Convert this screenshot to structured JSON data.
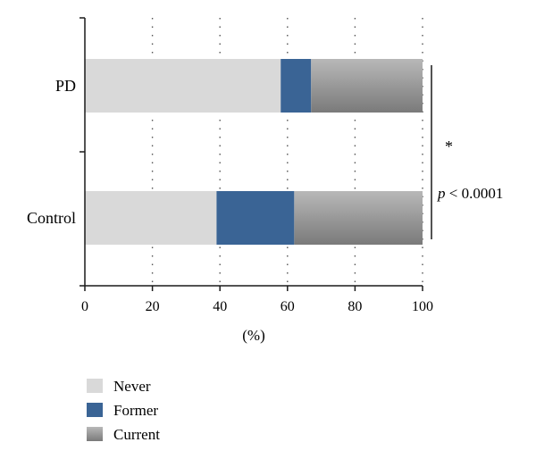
{
  "chart_data": {
    "type": "bar",
    "orientation": "horizontal",
    "stacked": true,
    "categories": [
      "PD",
      "Control"
    ],
    "series": [
      {
        "name": "Never",
        "values": [
          58,
          39
        ],
        "color": "#d9d9d9"
      },
      {
        "name": "Former",
        "values": [
          9,
          23
        ],
        "color": "#3a6495"
      },
      {
        "name": "Current",
        "values": [
          33,
          38
        ],
        "color": "#9a9a9a"
      }
    ],
    "xlabel": "(%)",
    "ylabel": "",
    "xlim": [
      0,
      100
    ],
    "xticks": [
      0,
      20,
      40,
      60,
      80,
      100
    ],
    "grid": "vertical dotted",
    "legend_position": "bottom-left",
    "annotation": {
      "marker": "*",
      "text_italic": "p",
      "text_rest": " < 0.0001"
    }
  }
}
